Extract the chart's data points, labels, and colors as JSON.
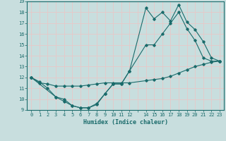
{
  "xlabel": "Humidex (Indice chaleur)",
  "xlim": [
    -0.5,
    23.5
  ],
  "ylim": [
    9,
    19
  ],
  "xticks": [
    0,
    1,
    2,
    3,
    4,
    5,
    6,
    7,
    8,
    9,
    10,
    11,
    12,
    13,
    14,
    15,
    16,
    17,
    18,
    19,
    20,
    21,
    22,
    23
  ],
  "xtick_labels": [
    "0",
    "1",
    "2",
    "3",
    "4",
    "5",
    "6",
    "7",
    "8",
    "9",
    "10",
    "11",
    "12",
    "",
    "14",
    "15",
    "16",
    "17",
    "18",
    "19",
    "20",
    "21",
    "22",
    "23"
  ],
  "yticks": [
    9,
    10,
    11,
    12,
    13,
    14,
    15,
    16,
    17,
    18,
    19
  ],
  "bg_color": "#c8dede",
  "line_color": "#1a6b6b",
  "grid_color": "#e8c8c8",
  "line1_x": [
    0,
    1,
    2,
    3,
    4,
    5,
    6,
    7,
    8,
    9,
    10,
    11,
    12,
    14,
    15,
    16,
    17,
    18,
    19,
    20,
    21,
    22,
    23
  ],
  "line1_y": [
    12.0,
    11.6,
    11.0,
    10.2,
    10.0,
    9.4,
    9.2,
    9.2,
    9.5,
    10.5,
    11.4,
    11.4,
    12.6,
    15.0,
    15.0,
    16.0,
    17.0,
    18.0,
    16.5,
    15.4,
    13.8,
    13.5,
    13.5
  ],
  "line2_x": [
    0,
    1,
    2,
    3,
    4,
    5,
    6,
    7,
    8,
    9,
    10,
    11,
    12,
    14,
    15,
    16,
    17,
    18,
    19,
    20,
    21,
    22,
    23
  ],
  "line2_y": [
    12.0,
    11.5,
    11.4,
    11.2,
    11.2,
    11.2,
    11.2,
    11.3,
    11.4,
    11.5,
    11.5,
    11.5,
    11.5,
    11.7,
    11.8,
    11.9,
    12.1,
    12.4,
    12.7,
    13.0,
    13.2,
    13.4,
    13.5
  ],
  "line3_x": [
    0,
    3,
    4,
    5,
    6,
    7,
    8,
    9,
    10,
    11,
    12,
    14,
    15,
    16,
    17,
    18,
    19,
    20,
    21,
    22,
    23
  ],
  "line3_y": [
    12.0,
    10.2,
    9.8,
    9.4,
    9.2,
    9.2,
    9.6,
    10.5,
    11.4,
    11.4,
    12.6,
    18.4,
    17.4,
    18.0,
    17.2,
    18.7,
    17.1,
    16.4,
    15.3,
    13.8,
    13.5
  ]
}
